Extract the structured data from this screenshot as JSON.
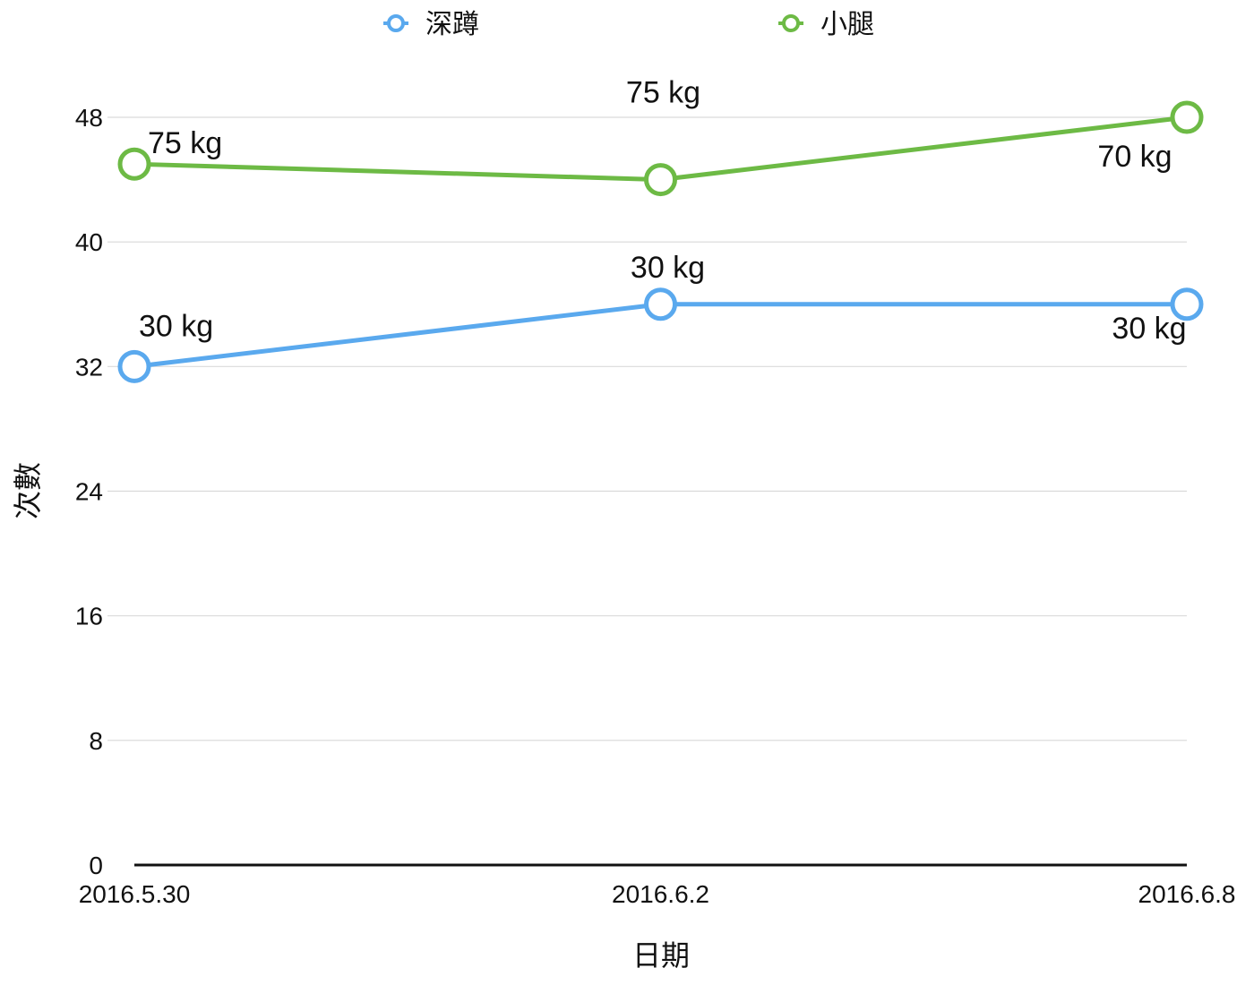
{
  "chart_data": {
    "type": "line",
    "title": "",
    "xlabel": "日期",
    "ylabel": "次數",
    "categories": [
      "2016.5.30",
      "2016.6.2",
      "2016.6.8"
    ],
    "ylim": [
      0,
      48
    ],
    "yticks": [
      0,
      8,
      16,
      24,
      32,
      40,
      48
    ],
    "grid": true,
    "legend_position": "top",
    "series": [
      {
        "name": "深蹲",
        "color": "#5AA9EE",
        "values": [
          32,
          36,
          36
        ],
        "labels": [
          "30 kg",
          "30 kg",
          "30 kg"
        ]
      },
      {
        "name": "小腿",
        "color": "#6DBA45",
        "values": [
          45,
          44,
          48
        ],
        "labels": [
          "75 kg",
          "75 kg",
          "70 kg"
        ]
      }
    ]
  }
}
